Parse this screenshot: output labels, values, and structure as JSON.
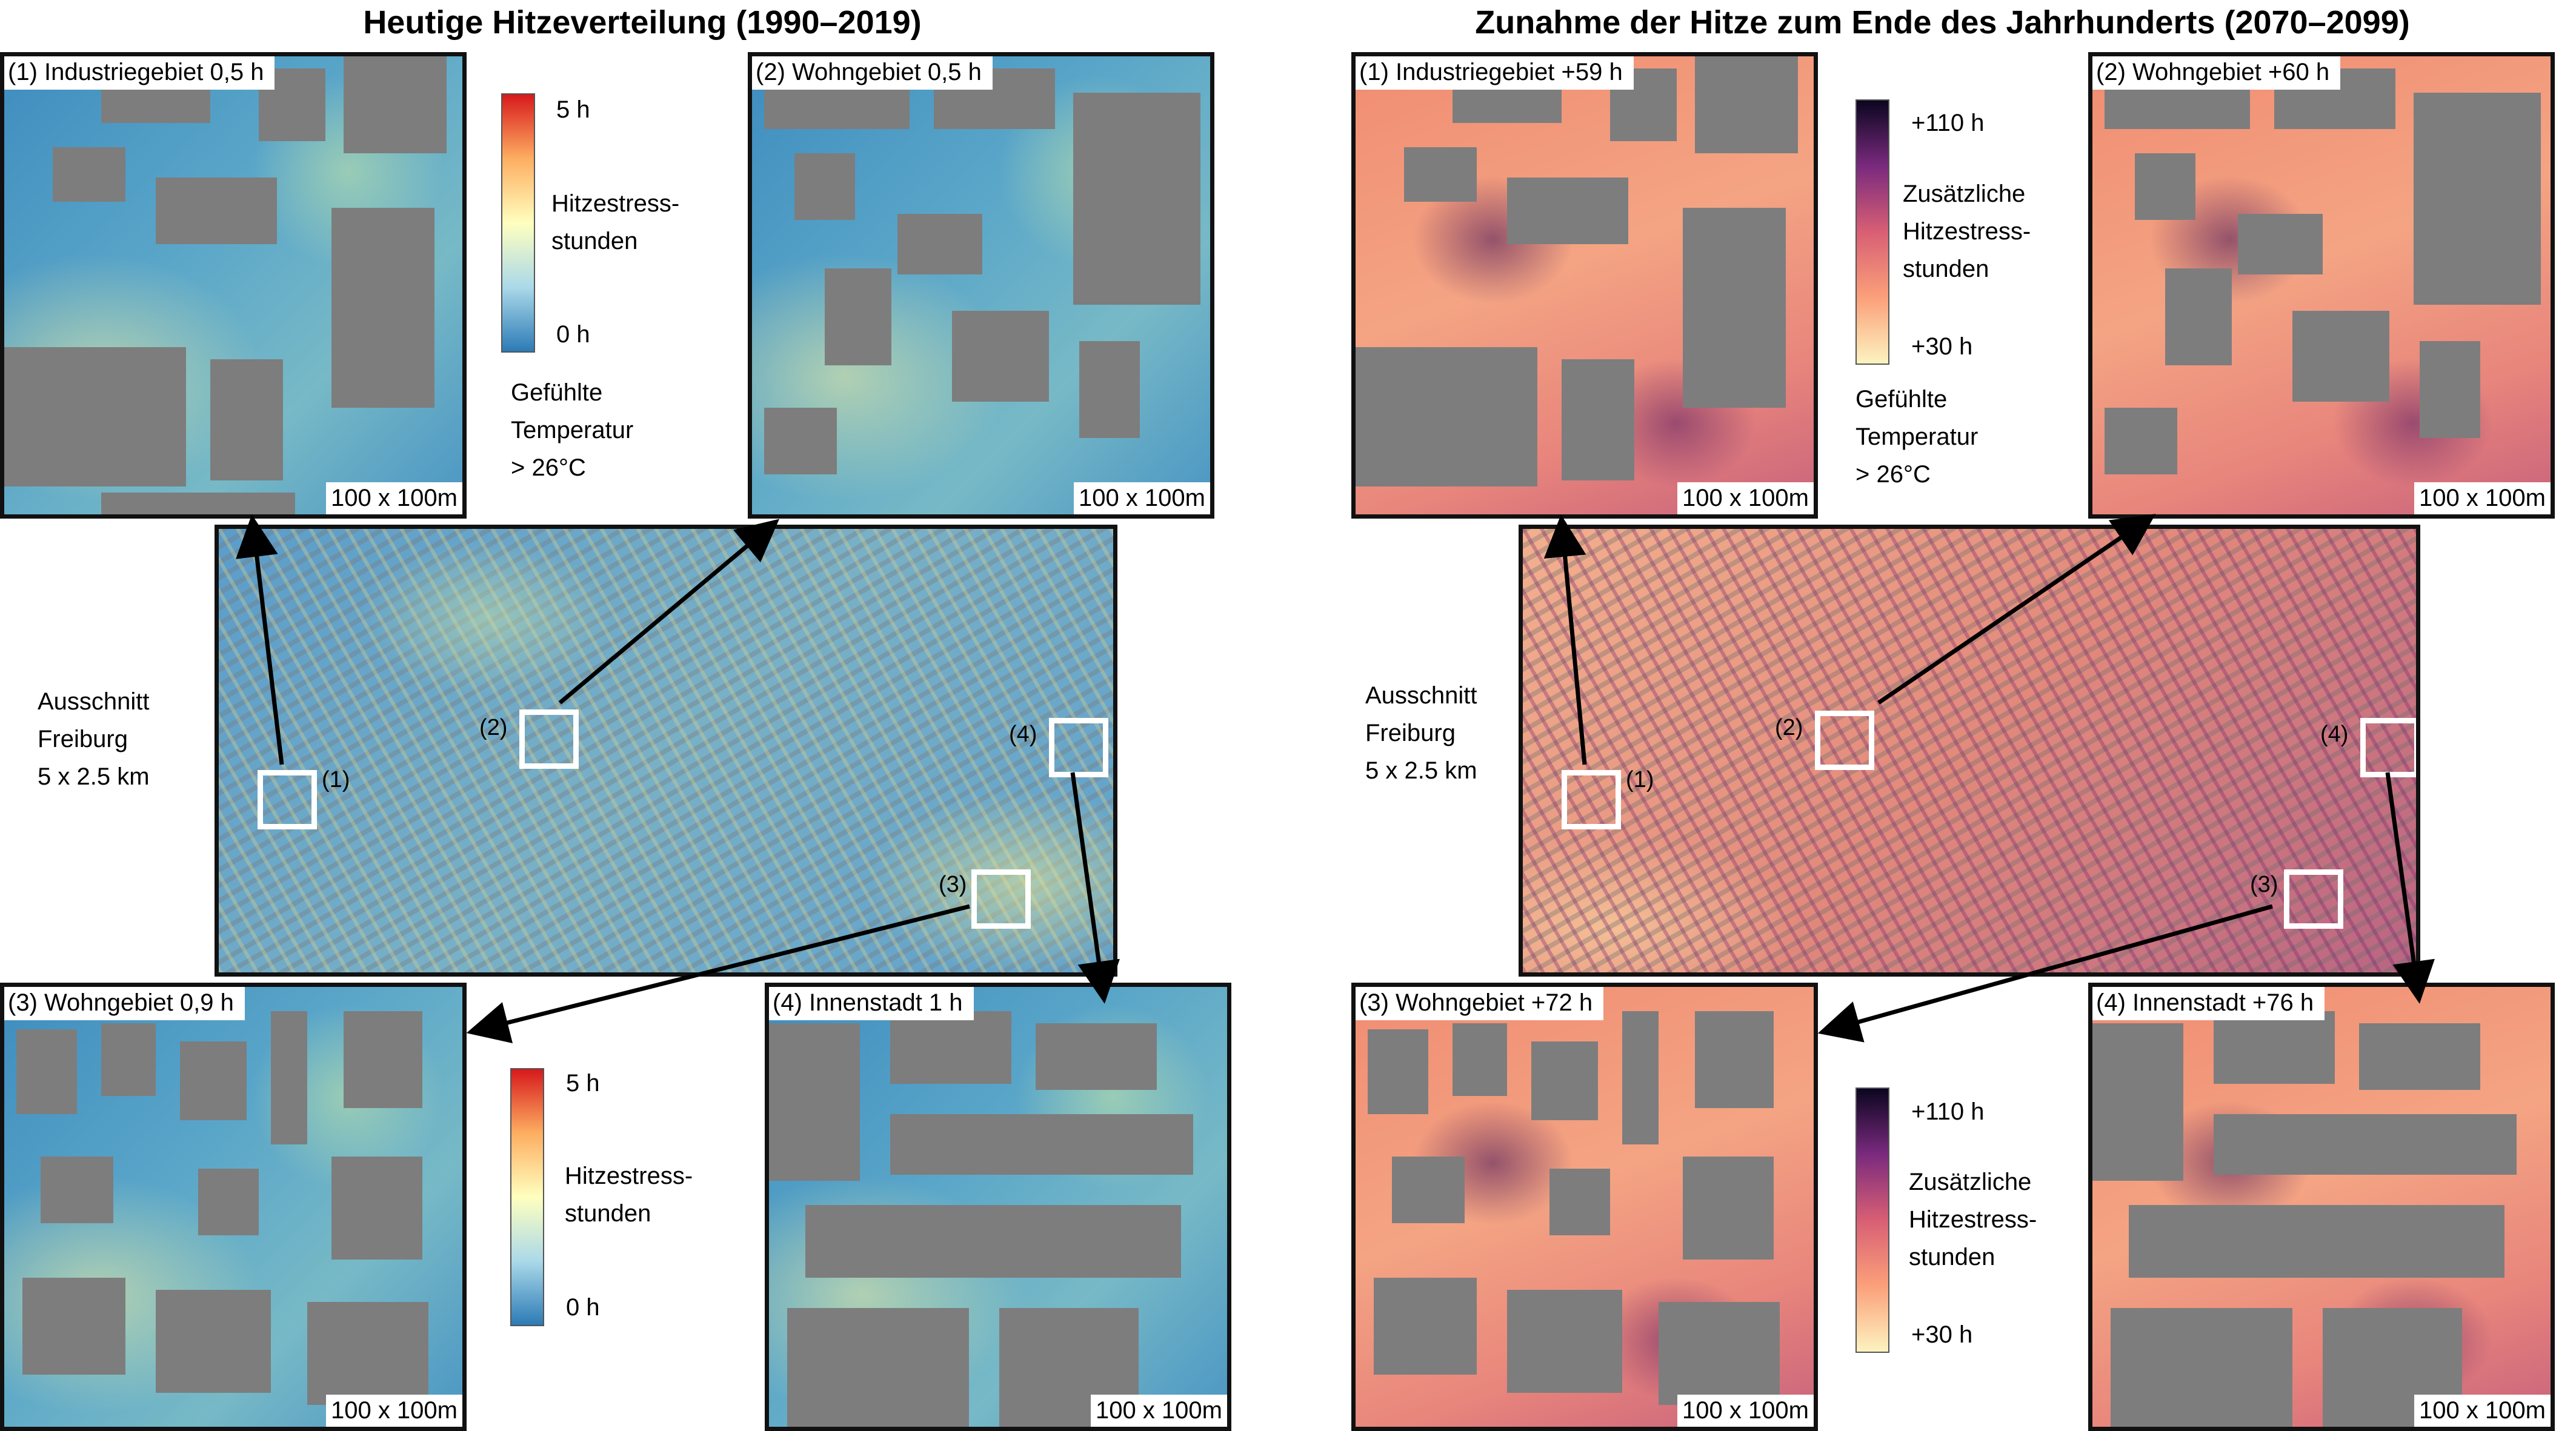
{
  "left": {
    "title": "Heutige Hitzeverteilung (1990–2019)",
    "panels": {
      "p1": {
        "label": "(1) Industriegebiet 0,5 h",
        "scale": "100 x 100m"
      },
      "p2": {
        "label": "(2) Wohngebiet 0,5 h",
        "scale": "100 x 100m"
      },
      "p3": {
        "label": "(3) Wohngebiet 0,9 h",
        "scale": "100 x 100m"
      },
      "p4": {
        "label": "(4) Innenstadt 1 h",
        "scale": "100 x 100m"
      }
    },
    "colorbar_top": {
      "max": "5 h",
      "title": "Hitzestress-\nstunden",
      "min": "0 h"
    },
    "colorbar_bottom": {
      "max": "5 h",
      "title": "Hitzestress-\nstunden",
      "min": "0 h"
    },
    "threshold_note": "Gefühlte\nTemperatur\n> 26°C",
    "overview_label": "Ausschnitt\nFreiburg\n5 x 2.5 km",
    "roi_labels": [
      "(1)",
      "(2)",
      "(3)",
      "(4)"
    ]
  },
  "right": {
    "title": "Zunahme der Hitze zum Ende des Jahrhunderts (2070–2099)",
    "panels": {
      "p1": {
        "label": "(1) Industriegebiet  +59 h",
        "scale": "100 x 100m"
      },
      "p2": {
        "label": "(2) Wohngebiet +60 h",
        "scale": "100 x 100m"
      },
      "p3": {
        "label": "(3) Wohngebiet +72 h",
        "scale": "100 x 100m"
      },
      "p4": {
        "label": "(4) Innenstadt +76 h",
        "scale": "100 x 100m"
      }
    },
    "colorbar_top": {
      "max": "+110 h",
      "title": "Zusätzliche\nHitzestress-\nstunden",
      "min": "+30 h"
    },
    "colorbar_bottom": {
      "max": "+110 h",
      "title": "Zusätzliche\nHitzestress-\nstunden",
      "min": "+30 h"
    },
    "threshold_note": "Gefühlte\nTemperatur\n> 26°C",
    "overview_label": "Ausschnitt\nFreiburg\n5 x 2.5 km",
    "roi_labels": [
      "(1)",
      "(2)",
      "(3)",
      "(4)"
    ]
  },
  "colors": {
    "current_scale": [
      "#2c7bb6",
      "#abd9e9",
      "#ffffbf",
      "#fdae61",
      "#d7191c"
    ],
    "future_scale": [
      "#fcf3c0",
      "#fba07a",
      "#d85f74",
      "#7a2a7e",
      "#0b0620"
    ],
    "building": "#7d7d7d"
  }
}
